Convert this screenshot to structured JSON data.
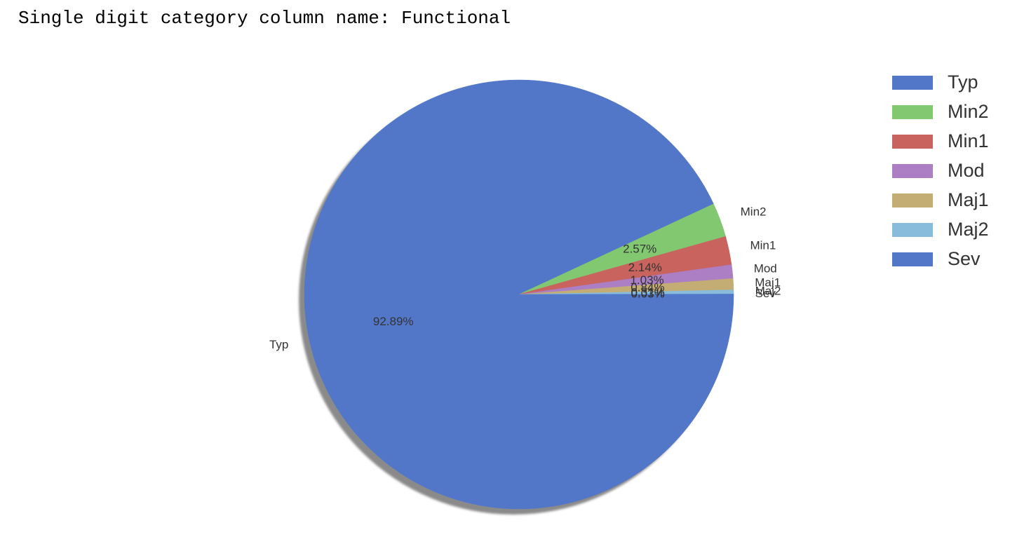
{
  "heading": "Single digit category column name: Functional",
  "chart_data": {
    "type": "pie",
    "title": "",
    "labels": [
      "Typ",
      "Min2",
      "Min1",
      "Mod",
      "Maj1",
      "Maj2",
      "Sev"
    ],
    "values": [
      92.89,
      2.57,
      2.14,
      1.03,
      0.84,
      0.31,
      0.03
    ],
    "pct_labels": [
      "92.89%",
      "2.57%",
      "2.14%",
      "1.03%",
      "0.84%",
      "0.31%",
      "0.03%"
    ],
    "colors": [
      "#5377c8",
      "#82c870",
      "#c9635e",
      "#ac7fc4",
      "#c3ad74",
      "#89bcdb",
      "#5377c8"
    ],
    "start_angle": 0,
    "direction": "clockwise",
    "shadow": true,
    "legend": {
      "placement": "top-right",
      "entries": [
        "Typ",
        "Min2",
        "Min1",
        "Mod",
        "Maj1",
        "Maj2",
        "Sev"
      ]
    }
  }
}
